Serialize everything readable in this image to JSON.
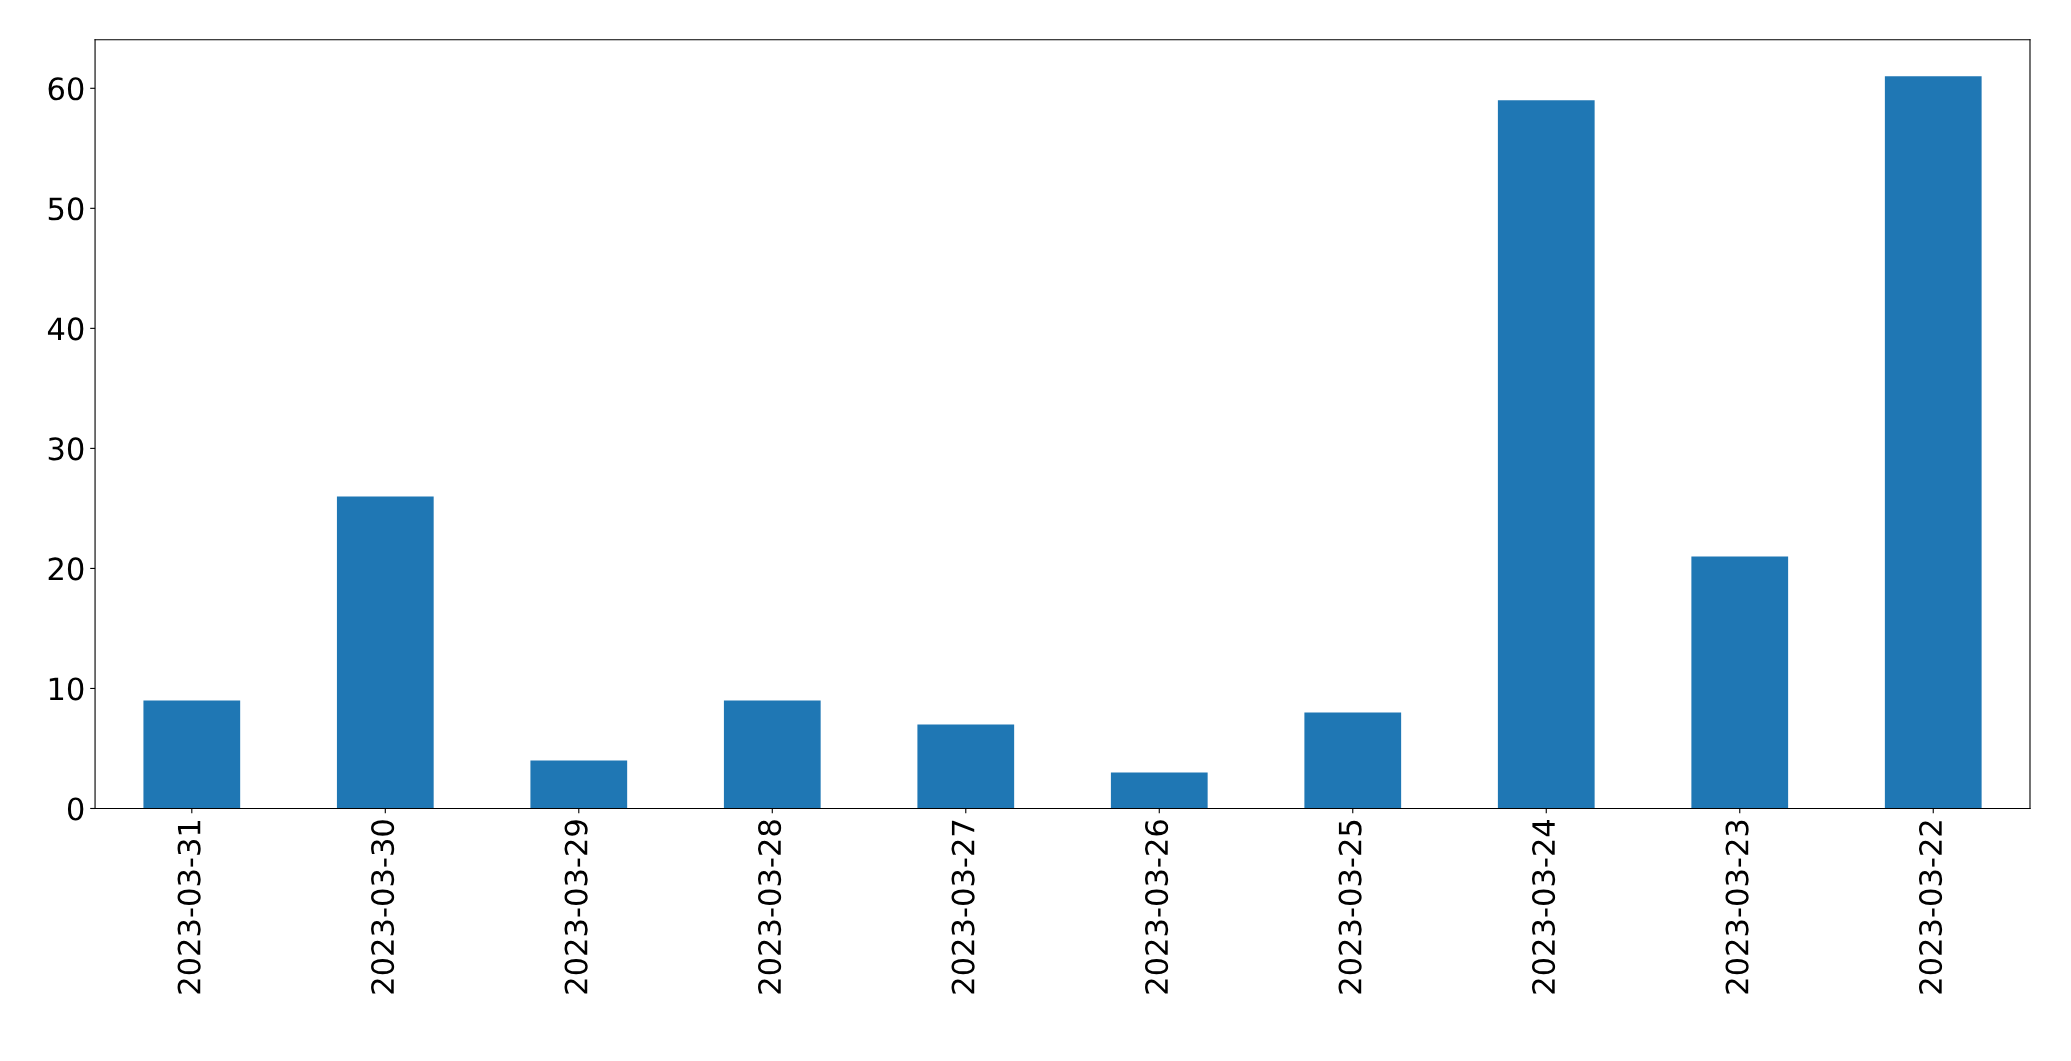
{
  "chart_data": {
    "type": "bar",
    "categories": [
      "2023-03-31",
      "2023-03-30",
      "2023-03-29",
      "2023-03-28",
      "2023-03-27",
      "2023-03-26",
      "2023-03-25",
      "2023-03-24",
      "2023-03-23",
      "2023-03-22"
    ],
    "values": [
      9,
      26,
      4,
      9,
      7,
      3,
      8,
      59,
      21,
      61
    ],
    "color": "#1f77b4",
    "ylim": [
      0,
      64.05
    ],
    "yticks": [
      0,
      10,
      20,
      30,
      40,
      50,
      60
    ],
    "grid": false,
    "legend": false
  }
}
